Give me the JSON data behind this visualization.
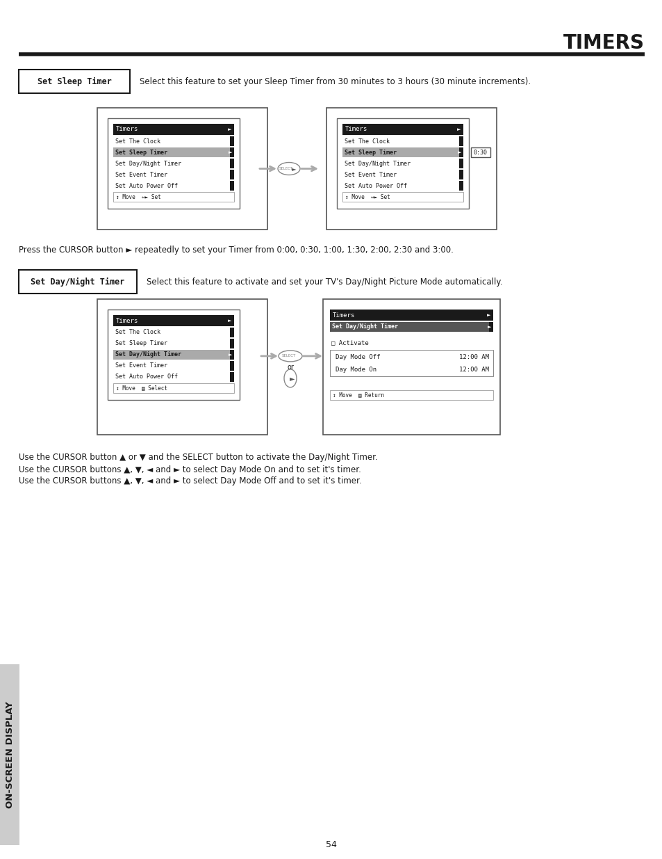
{
  "title": "TIMERS",
  "page_number": "54",
  "bg_color": "#ffffff",
  "section1_label": "Set Sleep Timer",
  "section1_desc": "Select this feature to set your Sleep Timer from 30 minutes to 3 hours (30 minute increments).",
  "section2_label": "Set Day/Night Timer",
  "section2_desc": "Select this feature to activate and set your TV's Day/Night Picture Mode automatically.",
  "press_cursor_text": "Press the CURSOR button ► repeatedly to set your Timer from 0:00, 0:30, 1:00, 1:30, 2:00, 2:30 and 3:00.",
  "use_cursor_text1": "Use the CURSOR button ▲ or ▼ and the SELECT button to activate the Day/Night Timer.",
  "use_cursor_text2": "Use the CURSOR buttons ▲, ▼, ◄ and ► to select Day Mode On and to set it's timer.",
  "use_cursor_text3": "Use the CURSOR buttons ▲, ▼, ◄ and ► to select Day Mode Off and to set it's timer.",
  "menu_title": "Timers",
  "menu_items": [
    "Set The Clock",
    "Set Sleep Timer",
    "Set Day/Night Timer",
    "Set Event Timer",
    "Set Auto Power Off"
  ],
  "menu_footer1": "↕ Move  ⇔► Set",
  "menu_footer2": "↕ Move  ⇔► Set",
  "menu_footer3": "↕ Move  ▤ Select",
  "menu2_badge": "0:30",
  "menu4_title": "Timers",
  "menu4_sub_title": "Set Day/Night Timer",
  "menu4_activate": "□ Activate",
  "menu4_day_on": "Day Mode On",
  "menu4_day_off": "Day Mode Off",
  "menu4_time": "12:00 AM",
  "menu4_footer": "↕ Move  ▤ Return",
  "sidebar_text": "ON-SCREEN DISPLAY"
}
